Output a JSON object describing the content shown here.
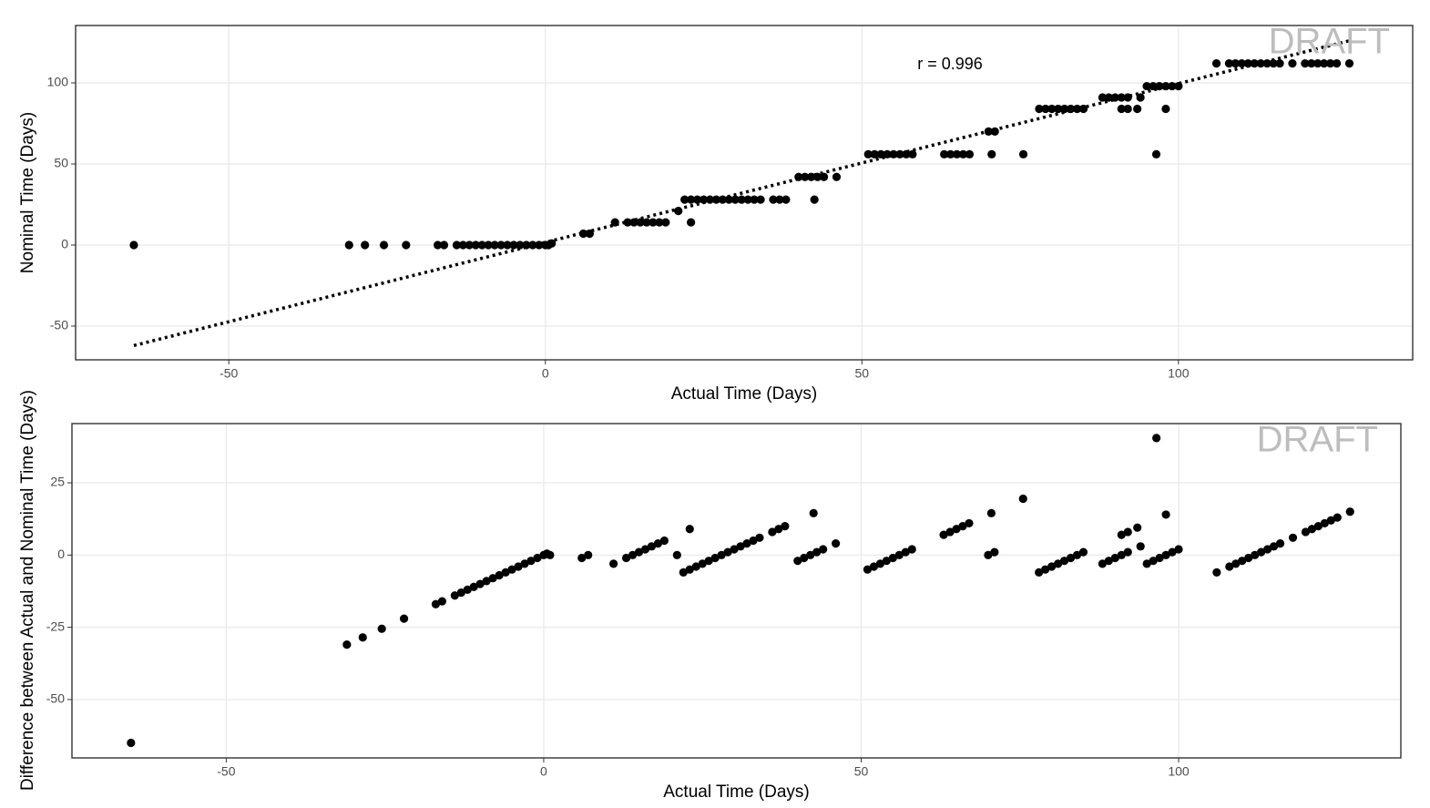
{
  "chart_data": [
    {
      "type": "scatter",
      "xlabel": "Actual Time (Days)",
      "ylabel": "Nominal Time (Days)",
      "watermark": "DRAFT",
      "annotation": "r = 0.996",
      "color": "#000000",
      "grid": true,
      "xlim": [
        -74.2,
        137
      ],
      "ylim": [
        -70.8,
        135.4
      ],
      "xticks": [
        -50,
        0,
        50,
        100
      ],
      "yticks": [
        -50,
        0,
        50,
        100
      ],
      "x": [
        -65,
        -31,
        -28.5,
        -25.5,
        -22,
        -17,
        -16,
        -14,
        -13,
        -12,
        -11,
        -10,
        -9,
        -8,
        -7,
        -6,
        -5,
        -4,
        -3,
        -2,
        -1,
        0,
        0.5,
        1,
        6,
        7,
        11,
        13,
        14,
        15,
        16,
        17,
        18,
        19,
        21,
        22,
        23,
        24,
        25,
        26,
        27,
        28,
        29,
        30,
        31,
        32,
        33,
        34,
        36,
        37,
        38,
        23,
        42.5,
        40,
        41,
        42,
        43,
        44,
        46,
        51,
        52,
        53,
        54,
        55,
        56,
        57,
        58,
        63,
        64,
        65,
        66,
        67,
        70.5,
        75.5,
        70,
        71,
        78,
        79,
        80,
        81,
        82,
        83,
        84,
        85,
        88,
        89,
        90,
        91,
        92,
        91,
        92,
        93.5,
        94,
        95,
        96,
        97,
        98,
        99,
        100,
        96.5,
        98,
        106,
        108,
        109,
        110,
        111,
        112,
        113,
        114,
        115,
        116,
        118,
        120,
        121,
        122,
        123,
        124,
        125,
        127
      ],
      "values": [
        0,
        0,
        0,
        0,
        0,
        0,
        0,
        0,
        0,
        0,
        0,
        0,
        0,
        0,
        0,
        0,
        0,
        0,
        0,
        0,
        0,
        0,
        0,
        1,
        7,
        7,
        14,
        14,
        14,
        14,
        14,
        14,
        14,
        14,
        21,
        28,
        28,
        28,
        28,
        28,
        28,
        28,
        28,
        28,
        28,
        28,
        28,
        28,
        28,
        28,
        28,
        14,
        28,
        42,
        42,
        42,
        42,
        42,
        42,
        56,
        56,
        56,
        56,
        56,
        56,
        56,
        56,
        56,
        56,
        56,
        56,
        56,
        56,
        56,
        70,
        70,
        84,
        84,
        84,
        84,
        84,
        84,
        84,
        84,
        91,
        91,
        91,
        91,
        91,
        84,
        84,
        84,
        91,
        98,
        98,
        98,
        98,
        98,
        98,
        56,
        84,
        112,
        112,
        112,
        112,
        112,
        112,
        112,
        112,
        112,
        112,
        112,
        112,
        112,
        112,
        112,
        112,
        112,
        112
      ],
      "trend_line": {
        "x": [
          -65,
          127
        ],
        "y": [
          -62,
          126
        ]
      }
    },
    {
      "type": "scatter",
      "xlabel": "Actual Time (Days)",
      "ylabel": "Difference between Actual and Nominal Time (Days)",
      "watermark": "DRAFT",
      "color": "#000000",
      "grid": true,
      "xlim": [
        -74.3,
        135
      ],
      "ylim": [
        -70.2,
        45.5
      ],
      "xticks": [
        -50,
        0,
        50,
        100
      ],
      "yticks": [
        -50,
        -25,
        0,
        25
      ],
      "x": [
        -65,
        -31,
        -28.5,
        -25.5,
        -22,
        -17,
        -16,
        -14,
        -13,
        -12,
        -11,
        -10,
        -9,
        -8,
        -7,
        -6,
        -5,
        -4,
        -3,
        -2,
        -1,
        0,
        0.5,
        1,
        6,
        7,
        11,
        13,
        14,
        15,
        16,
        17,
        18,
        19,
        21,
        22,
        23,
        24,
        25,
        26,
        27,
        28,
        29,
        30,
        31,
        32,
        33,
        34,
        36,
        37,
        38,
        23,
        42.5,
        40,
        41,
        42,
        43,
        44,
        46,
        51,
        52,
        53,
        54,
        55,
        56,
        57,
        58,
        63,
        64,
        65,
        66,
        67,
        70.5,
        75.5,
        70,
        71,
        78,
        79,
        80,
        81,
        82,
        83,
        84,
        85,
        88,
        89,
        90,
        91,
        92,
        91,
        92,
        93.5,
        94,
        95,
        96,
        97,
        98,
        99,
        100,
        96.5,
        98,
        106,
        108,
        109,
        110,
        111,
        112,
        113,
        114,
        115,
        116,
        118,
        120,
        121,
        122,
        123,
        124,
        125,
        127
      ],
      "values": [
        -65,
        -31,
        -28.5,
        -25.5,
        -22,
        -17,
        -16,
        -14,
        -13,
        -12,
        -11,
        -10,
        -9,
        -8,
        -7,
        -6,
        -5,
        -4,
        -3,
        -2,
        -1,
        0,
        0.5,
        0,
        -1,
        0,
        -3,
        -1,
        0,
        1,
        2,
        3,
        4,
        5,
        0,
        -6,
        -5,
        -4,
        -3,
        -2,
        -1,
        0,
        1,
        2,
        3,
        4,
        5,
        6,
        8,
        9,
        10,
        9,
        14.5,
        -2,
        -1,
        0,
        1,
        2,
        4,
        -5,
        -4,
        -3,
        -2,
        -1,
        0,
        1,
        2,
        7,
        8,
        9,
        10,
        11,
        14.5,
        19.5,
        0,
        1,
        -6,
        -5,
        -4,
        -3,
        -2,
        -1,
        0,
        1,
        -3,
        -2,
        -1,
        0,
        1,
        7,
        8,
        9.5,
        3,
        -3,
        -2,
        -1,
        0,
        1,
        2,
        40.5,
        14,
        -6,
        -4,
        -3,
        -2,
        -1,
        0,
        1,
        2,
        3,
        4,
        6,
        8,
        9,
        10,
        11,
        12,
        13,
        15
      ]
    }
  ]
}
